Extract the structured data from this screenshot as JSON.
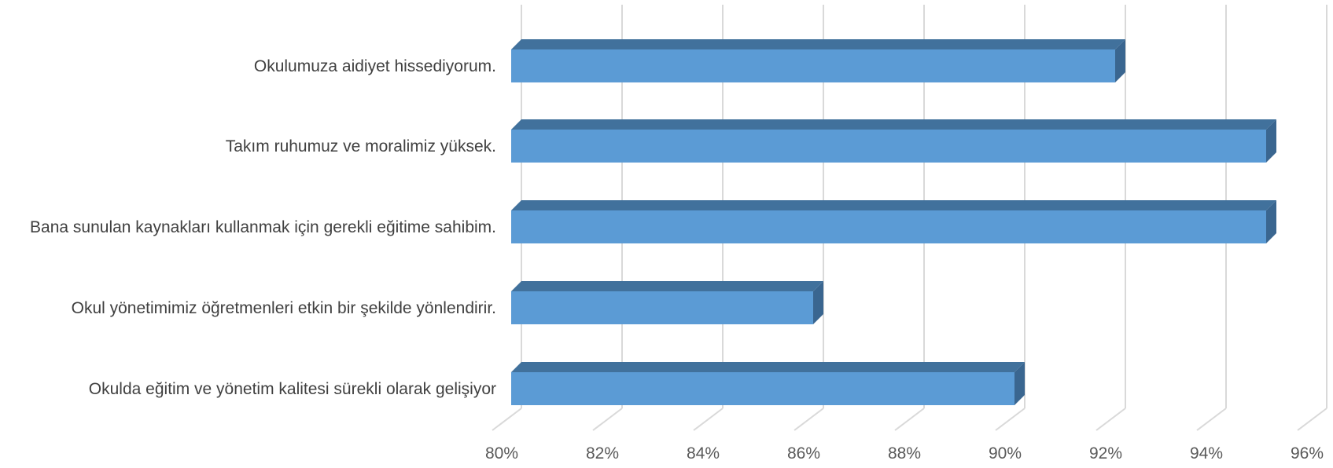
{
  "chart_data": {
    "type": "bar",
    "orientation": "horizontal",
    "style": "3d",
    "categories": [
      "Okulumuza aidiyet hissediyorum.",
      "Takım ruhumuz ve moralimiz yüksek.",
      "Bana sunulan kaynakları kullanmak için gerekli eğitime sahibim.",
      "Okul yönetimimiz öğretmenleri etkin bir şekilde yönlendirir.",
      "Okulda eğitim ve yönetim kalitesi sürekli olarak gelişiyor"
    ],
    "values": [
      92,
      95,
      95,
      86,
      90
    ],
    "xlim": [
      80,
      96
    ],
    "xticks": [
      "80%",
      "82%",
      "84%",
      "86%",
      "88%",
      "90%",
      "92%",
      "94%",
      "96%"
    ],
    "grid": true,
    "legend": "none",
    "colors": {
      "bar_front": "#5b9bd5",
      "bar_top": "#41719c",
      "bar_side": "#3a6690",
      "grid": "#d9d9d9"
    }
  }
}
